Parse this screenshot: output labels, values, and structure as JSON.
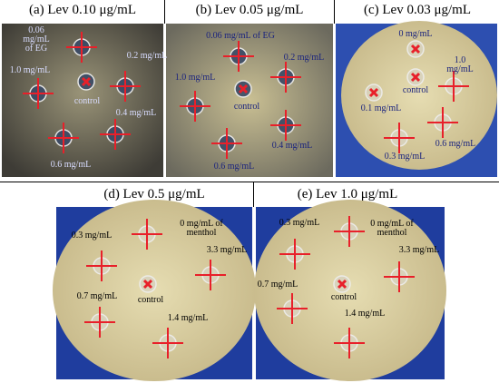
{
  "panels": [
    {
      "title": "(a) Lev 0.10 μg/mL",
      "labels": [
        "0.06 mg/mL of EG",
        "0.2 mg/mL",
        "1.0 mg/mL",
        "control",
        "0.4 mg/mL",
        "0.6 mg/mL"
      ]
    },
    {
      "title": "(b) Lev 0.05 μg/mL",
      "labels": [
        "0.06 mg/mL of EG",
        "0.2 mg/mL",
        "1.0 mg/mL",
        "control",
        "0.4 mg/mL",
        "0.6 mg/mL"
      ]
    },
    {
      "title": "(c) Lev 0.03 μg/mL",
      "labels": [
        "0 mg/mL",
        "1.0 mg/mL",
        "control",
        "0.1 mg/mL",
        "0.6 mg/mL",
        "0.3 mg/mL"
      ]
    },
    {
      "title": "(d) Lev 0.5 μg/mL",
      "labels": [
        "0.3 mg/mL",
        "0 mg/mL of menthol",
        "3.3 mg/mL",
        "control",
        "0.7 mg/mL",
        "1.4 mg/mL"
      ]
    },
    {
      "title": "(e) Lev 1.0 μg/mL",
      "labels": [
        "0.3 mg/mL",
        "0 mg/mL of menthol",
        "3.3 mg/mL",
        "control",
        "0.7 mg/mL",
        "1.4 mg/mL"
      ]
    }
  ]
}
